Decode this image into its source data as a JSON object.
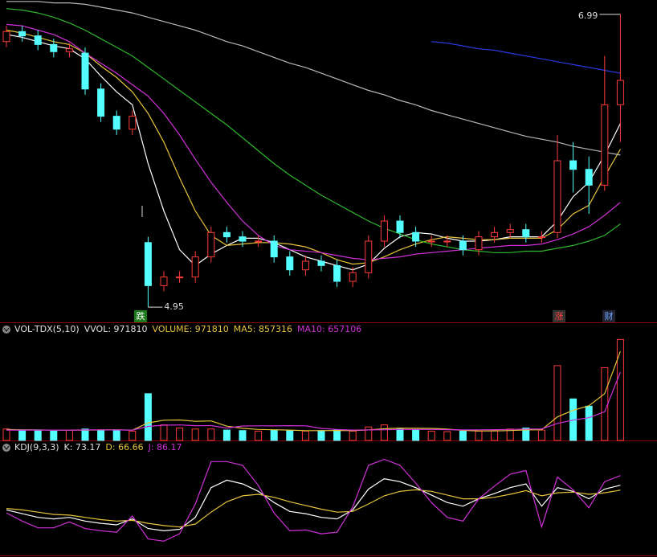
{
  "chart_data": [
    {
      "type": "candlestick",
      "open": [
        6.8,
        6.87,
        6.84,
        6.78,
        6.73,
        6.72,
        6.47,
        6.28,
        6.19,
        5.4,
        5.1,
        5.16,
        5.16,
        5.3,
        5.47,
        5.44,
        5.41,
        5.41,
        5.3,
        5.21,
        5.27,
        5.24,
        5.13,
        5.19,
        5.41,
        5.55,
        5.47,
        5.41,
        5.41,
        5.41,
        5.35,
        5.44,
        5.47,
        5.49,
        5.44,
        5.47,
        5.97,
        5.91,
        5.8,
        6.36
      ],
      "high": [
        6.91,
        6.91,
        6.88,
        6.82,
        6.79,
        6.76,
        6.51,
        6.32,
        6.32,
        5.44,
        5.2,
        5.2,
        5.34,
        5.51,
        5.51,
        5.48,
        5.45,
        5.45,
        5.34,
        5.31,
        5.31,
        5.28,
        5.23,
        5.45,
        5.59,
        5.59,
        5.51,
        5.45,
        5.45,
        5.45,
        5.48,
        5.51,
        5.53,
        5.53,
        5.48,
        6.15,
        6.1,
        6.0,
        6.7,
        6.99
      ],
      "low": [
        6.76,
        6.8,
        6.74,
        6.69,
        6.69,
        6.43,
        6.24,
        6.15,
        6.15,
        4.95,
        5.06,
        5.12,
        5.12,
        5.26,
        5.4,
        5.37,
        5.37,
        5.26,
        5.17,
        5.17,
        5.2,
        5.09,
        5.09,
        5.15,
        5.37,
        5.43,
        5.37,
        5.37,
        5.37,
        5.31,
        5.31,
        5.4,
        5.43,
        5.4,
        5.4,
        5.43,
        5.75,
        5.6,
        5.76,
        6.1
      ],
      "close": [
        6.87,
        6.84,
        6.78,
        6.73,
        6.75,
        6.47,
        6.28,
        6.19,
        6.28,
        5.1,
        5.16,
        5.16,
        5.3,
        5.47,
        5.44,
        5.41,
        5.41,
        5.3,
        5.21,
        5.27,
        5.24,
        5.13,
        5.19,
        5.41,
        5.55,
        5.47,
        5.41,
        5.41,
        5.41,
        5.35,
        5.44,
        5.47,
        5.49,
        5.44,
        5.44,
        5.97,
        5.91,
        5.8,
        6.36,
        6.53
      ],
      "up_color": "#ff3b3b",
      "down_color": "#54ffff",
      "ylim": [
        4.85,
        7.09
      ],
      "lines": [
        {
          "color": "#ffffff",
          "values": [
            6.85,
            6.83,
            6.8,
            6.77,
            6.75,
            6.68,
            6.56,
            6.45,
            6.36,
            5.95,
            5.62,
            5.35,
            5.24,
            5.32,
            5.38,
            5.43,
            5.43,
            5.4,
            5.35,
            5.3,
            5.27,
            5.24,
            5.21,
            5.25,
            5.36,
            5.44,
            5.47,
            5.46,
            5.43,
            5.41,
            5.41,
            5.42,
            5.44,
            5.44,
            5.44,
            5.55,
            5.72,
            5.82,
            6.01,
            6.23
          ]
        },
        {
          "color": "#e6c43a",
          "values": [
            6.88,
            6.86,
            6.83,
            6.8,
            6.78,
            6.72,
            6.63,
            6.55,
            6.45,
            6.3,
            6.1,
            5.85,
            5.62,
            5.45,
            5.38,
            5.39,
            5.4,
            5.4,
            5.39,
            5.37,
            5.33,
            5.28,
            5.25,
            5.26,
            5.3,
            5.35,
            5.39,
            5.42,
            5.44,
            5.43,
            5.42,
            5.42,
            5.43,
            5.43,
            5.43,
            5.49,
            5.6,
            5.66,
            5.86,
            6.05
          ]
        },
        {
          "color": "#d030d8",
          "values": [
            6.92,
            6.91,
            6.88,
            6.85,
            6.8,
            6.72,
            6.65,
            6.58,
            6.5,
            6.42,
            6.3,
            6.15,
            5.98,
            5.82,
            5.68,
            5.55,
            5.45,
            5.38,
            5.35,
            5.34,
            5.33,
            5.31,
            5.29,
            5.28,
            5.29,
            5.3,
            5.32,
            5.33,
            5.34,
            5.35,
            5.36,
            5.37,
            5.38,
            5.38,
            5.39,
            5.42,
            5.46,
            5.51,
            5.59,
            5.68
          ]
        },
        {
          "color": "#2db82d",
          "values": [
            7.03,
            7.02,
            7.0,
            6.97,
            6.93,
            6.88,
            6.82,
            6.76,
            6.7,
            6.62,
            6.54,
            6.46,
            6.38,
            6.3,
            6.22,
            6.13,
            6.04,
            5.95,
            5.87,
            5.8,
            5.73,
            5.67,
            5.61,
            5.55,
            5.5,
            5.46,
            5.42,
            5.39,
            5.37,
            5.35,
            5.34,
            5.33,
            5.33,
            5.34,
            5.34,
            5.36,
            5.38,
            5.41,
            5.45,
            5.53
          ]
        },
        {
          "color": "#b8b8b8",
          "values": [
            7.08,
            7.08,
            7.08,
            7.07,
            7.07,
            7.06,
            7.04,
            7.02,
            7.0,
            6.97,
            6.94,
            6.91,
            6.88,
            6.84,
            6.8,
            6.77,
            6.73,
            6.69,
            6.65,
            6.62,
            6.58,
            6.54,
            6.5,
            6.46,
            6.43,
            6.39,
            6.36,
            6.32,
            6.29,
            6.26,
            6.23,
            6.2,
            6.17,
            6.14,
            6.12,
            6.1,
            6.07,
            6.05,
            6.03,
            6.01
          ]
        },
        {
          "color": "#2a3adf",
          "values": [
            null,
            null,
            null,
            null,
            null,
            null,
            null,
            null,
            null,
            null,
            null,
            null,
            null,
            null,
            null,
            null,
            null,
            null,
            null,
            null,
            null,
            null,
            null,
            null,
            null,
            null,
            null,
            6.8,
            6.79,
            6.77,
            6.75,
            6.74,
            6.72,
            6.7,
            6.68,
            6.66,
            6.64,
            6.62,
            6.6,
            6.58
          ]
        }
      ],
      "max_label": 6.99,
      "min_label": 4.95,
      "markers": [
        "跌",
        "涨",
        "财"
      ]
    },
    {
      "type": "bar",
      "legend": [
        {
          "text": "VOL-TDX(5,10)",
          "color": "#e0e0e0"
        },
        {
          "text": "VVOL: 971810",
          "color": "#e0e0e0"
        },
        {
          "text": "VOLUME: 971810",
          "color": "#e6c43a"
        },
        {
          "text": "MA5: 857316",
          "color": "#e6c43a"
        },
        {
          "text": "MA10: 657106",
          "color": "#d030d8"
        }
      ],
      "values": [
        110000,
        100000,
        95000,
        90000,
        100000,
        110000,
        100000,
        95000,
        90000,
        450000,
        150000,
        120000,
        110000,
        110000,
        100000,
        95000,
        90000,
        100000,
        95000,
        90000,
        95000,
        100000,
        90000,
        130000,
        150000,
        110000,
        100000,
        90000,
        85000,
        90000,
        90000,
        95000,
        110000,
        120000,
        100000,
        720000,
        400000,
        330000,
        700000,
        971810
      ],
      "ylim": [
        0,
        990000
      ],
      "lines": [
        {
          "color": "#e6c43a",
          "values": [
            105000,
            103000,
            101000,
            99000,
            99000,
            99000,
            101000,
            102000,
            99000,
            169000,
            195000,
            197000,
            184000,
            188000,
            138000,
            117000,
            106000,
            103000,
            100000,
            94000,
            94000,
            96000,
            94000,
            101000,
            112000,
            119000,
            117000,
            116000,
            109000,
            97000,
            91000,
            92000,
            95000,
            101000,
            103000,
            227000,
            290000,
            334000,
            450000,
            857316
          ]
        },
        {
          "color": "#d030d8",
          "values": [
            100000,
            100000,
            100000,
            100000,
            100000,
            101000,
            102000,
            101000,
            100000,
            135000,
            147000,
            149000,
            142000,
            143000,
            119000,
            139000,
            141000,
            140000,
            142000,
            141000,
            116000,
            106000,
            100000,
            101000,
            103000,
            106000,
            106000,
            106000,
            104000,
            101000,
            102000,
            104000,
            106000,
            110000,
            111000,
            164000,
            196000,
            219000,
            276000,
            657106
          ]
        }
      ]
    },
    {
      "type": "line",
      "legend": [
        {
          "text": "KDJ(9,3,3)",
          "color": "#e0e0e0"
        },
        {
          "text": "K: 73.17",
          "color": "#e0e0e0"
        },
        {
          "text": "D: 66.66",
          "color": "#e6c43a"
        },
        {
          "text": "J: 86.17",
          "color": "#d030d8"
        }
      ],
      "ylim": [
        -20,
        115
      ],
      "series": [
        {
          "color": "#ffffff",
          "values": [
            40,
            35,
            30,
            28,
            30,
            25,
            22,
            20,
            28,
            15,
            12,
            14,
            30,
            70,
            80,
            75,
            65,
            50,
            38,
            35,
            30,
            28,
            40,
            68,
            82,
            78,
            70,
            60,
            50,
            45,
            55,
            62,
            70,
            75,
            45,
            70,
            65,
            55,
            68,
            73.17
          ]
        },
        {
          "color": "#e6c43a",
          "values": [
            42,
            40,
            37,
            34,
            33,
            30,
            27,
            25,
            26,
            22,
            19,
            17,
            21,
            37,
            51,
            59,
            61,
            57,
            51,
            46,
            41,
            37,
            38,
            48,
            59,
            65,
            67,
            65,
            60,
            55,
            55,
            57,
            61,
            66,
            59,
            63,
            64,
            61,
            63,
            66.66
          ]
        },
        {
          "color": "#d030d8",
          "values": [
            36,
            25,
            16,
            16,
            24,
            15,
            12,
            10,
            32,
            1,
            -2,
            8,
            48,
            105,
            105,
            100,
            73,
            36,
            12,
            13,
            8,
            10,
            44,
            100,
            108,
            100,
            76,
            50,
            30,
            25,
            55,
            72,
            88,
            93,
            17,
            84,
            67,
            43,
            78,
            86.17
          ]
        }
      ]
    }
  ]
}
